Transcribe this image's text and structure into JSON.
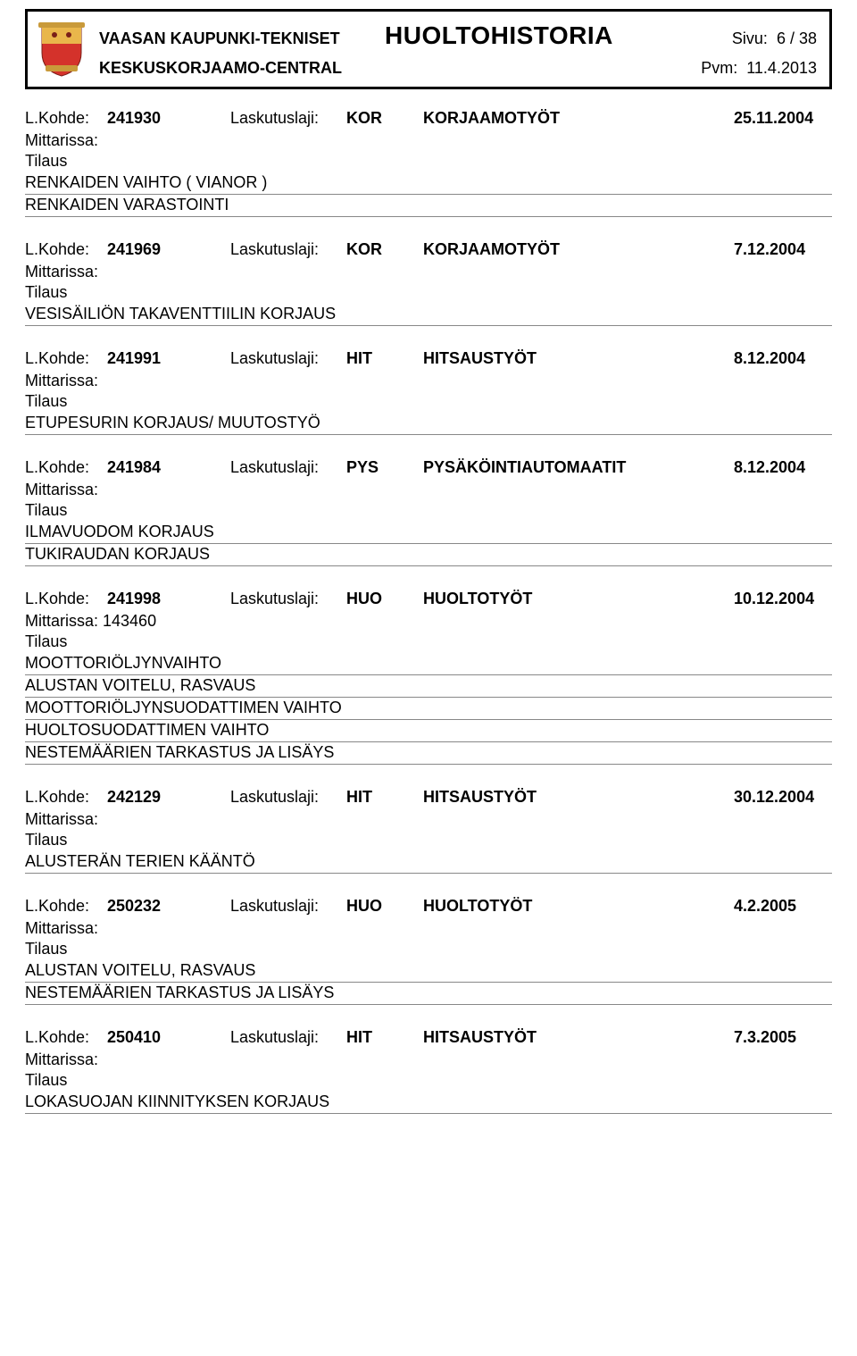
{
  "header": {
    "org_top": "VAASAN KAUPUNKI-TEKNISET",
    "org_bottom": "KESKUSKORJAAMO-CENTRAL",
    "title": "HUOLTOHISTORIA",
    "page_label": "Sivu:",
    "page_value": "6 / 38",
    "date_label": "Pvm:",
    "date_value": "11.4.2013",
    "crest_colors": {
      "shield_top": "#e9b64b",
      "shield_bottom": "#d4322b",
      "scroll": "#c99a3a"
    }
  },
  "labels": {
    "lkohde": "L.Kohde:",
    "laskutuslaji": "Laskutuslaji:",
    "mittarissa": "Mittarissa:",
    "tilaus": "Tilaus"
  },
  "entries": [
    {
      "kohde": "241930",
      "laji": "KOR",
      "category": "KORJAAMOTYÖT",
      "date": "25.11.2004",
      "mittarissa": "",
      "items": [
        "RENKAIDEN VAIHTO ( VIANOR )",
        "RENKAIDEN VARASTOINTI"
      ]
    },
    {
      "kohde": "241969",
      "laji": "KOR",
      "category": "KORJAAMOTYÖT",
      "date": "7.12.2004",
      "mittarissa": "",
      "items": [
        "VESISÄILIÖN TAKAVENTTIILIN KORJAUS"
      ]
    },
    {
      "kohde": "241991",
      "laji": "HIT",
      "category": "HITSAUSTYÖT",
      "date": "8.12.2004",
      "mittarissa": "",
      "items": [
        "ETUPESURIN KORJAUS/ MUUTOSTYÖ"
      ]
    },
    {
      "kohde": "241984",
      "laji": "PYS",
      "category": "PYSÄKÖINTIAUTOMAATIT",
      "date": "8.12.2004",
      "mittarissa": "",
      "items": [
        "ILMAVUODOM KORJAUS",
        "TUKIRAUDAN KORJAUS"
      ]
    },
    {
      "kohde": "241998",
      "laji": "HUO",
      "category": "HUOLTOTYÖT",
      "date": "10.12.2004",
      "mittarissa": "143460",
      "items": [
        "MOOTTORIÖLJYNVAIHTO",
        "ALUSTAN VOITELU, RASVAUS",
        "MOOTTORIÖLJYNSUODATTIMEN VAIHTO",
        "HUOLTOSUODATTIMEN VAIHTO",
        "NESTEMÄÄRIEN TARKASTUS JA LISÄYS"
      ]
    },
    {
      "kohde": "242129",
      "laji": "HIT",
      "category": "HITSAUSTYÖT",
      "date": "30.12.2004",
      "mittarissa": "",
      "items": [
        "ALUSTERÄN TERIEN KÄÄNTÖ"
      ]
    },
    {
      "kohde": "250232",
      "laji": "HUO",
      "category": "HUOLTOTYÖT",
      "date": "4.2.2005",
      "mittarissa": "",
      "items": [
        "ALUSTAN VOITELU, RASVAUS",
        "NESTEMÄÄRIEN TARKASTUS JA LISÄYS"
      ]
    },
    {
      "kohde": "250410",
      "laji": "HIT",
      "category": "HITSAUSTYÖT",
      "date": "7.3.2005",
      "mittarissa": "",
      "items": [
        "LOKASUOJAN KIINNITYKSEN KORJAUS"
      ]
    }
  ]
}
